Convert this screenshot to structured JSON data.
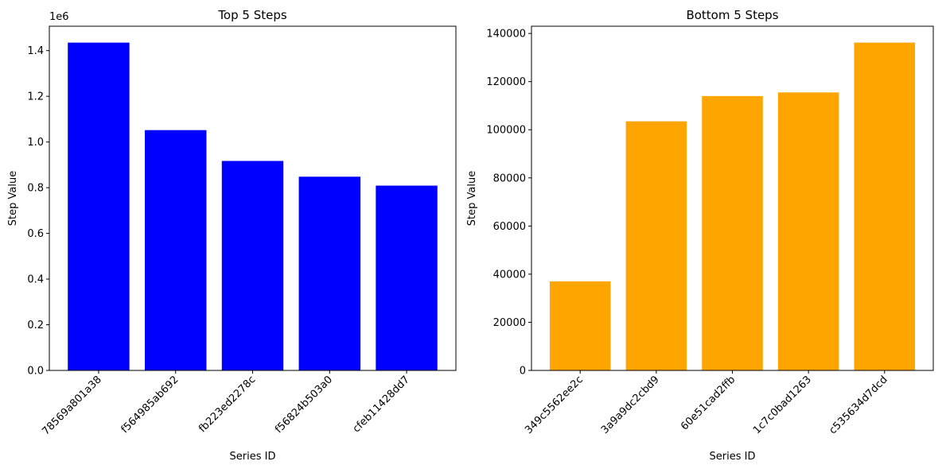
{
  "colors": {
    "left_bars": "#0000ff",
    "right_bars": "#ffa500"
  },
  "chart_data": [
    {
      "type": "bar",
      "title": "Top 5 Steps",
      "xlabel": "Series ID",
      "ylabel": "Step Value",
      "offset_label": "1e6",
      "categories": [
        "78569a801a38",
        "f564985ab692",
        "fb223ed2278c",
        "f56824b503a0",
        "cfeb11428dd7"
      ],
      "values": [
        1435000,
        1052000,
        917000,
        848000,
        809000
      ],
      "ylim": [
        0,
        1506750
      ],
      "yticks": [
        0,
        200000,
        400000,
        600000,
        800000,
        1000000,
        1200000,
        1400000
      ],
      "ytick_labels": [
        "0.0",
        "0.2",
        "0.4",
        "0.6",
        "0.8",
        "1.0",
        "1.2",
        "1.4"
      ],
      "grid": false,
      "color": "#0000ff"
    },
    {
      "type": "bar",
      "title": "Bottom 5 Steps",
      "xlabel": "Series ID",
      "ylabel": "Step Value",
      "categories": [
        "349c5562ee2c",
        "3a9a9dc2cbd9",
        "60e51cad2ffb",
        "1c7c0bad1263",
        "c535634d7dcd"
      ],
      "values": [
        37000,
        103500,
        114000,
        115500,
        136200
      ],
      "ylim": [
        0,
        143010
      ],
      "yticks": [
        0,
        20000,
        40000,
        60000,
        80000,
        100000,
        120000,
        140000
      ],
      "ytick_labels": [
        "0",
        "20000",
        "40000",
        "60000",
        "80000",
        "100000",
        "120000",
        "140000"
      ],
      "grid": false,
      "color": "#ffa500"
    }
  ]
}
